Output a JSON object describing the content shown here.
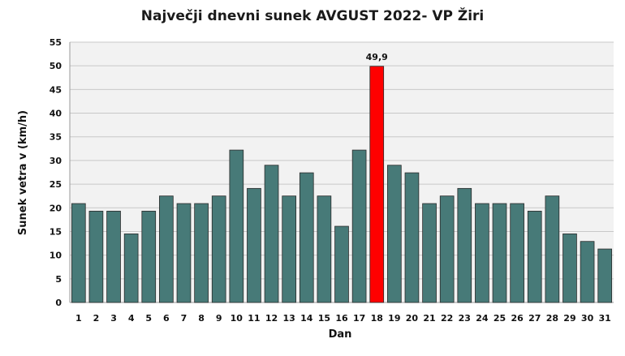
{
  "chart_data": {
    "type": "bar",
    "title": "Največji dnevni sunek AVGUST 2022- VP Žiri",
    "xlabel": "Dan",
    "ylabel": "Sunek vetra v (km/h)",
    "ylim": [
      0,
      55
    ],
    "yticks": [
      0,
      5,
      10,
      15,
      20,
      25,
      30,
      35,
      40,
      45,
      50,
      55
    ],
    "grid": true,
    "categories": [
      "1",
      "2",
      "3",
      "4",
      "5",
      "6",
      "7",
      "8",
      "9",
      "10",
      "11",
      "12",
      "13",
      "14",
      "15",
      "16",
      "17",
      "18",
      "19",
      "20",
      "21",
      "22",
      "23",
      "24",
      "25",
      "26",
      "27",
      "28",
      "29",
      "30",
      "31"
    ],
    "values": [
      20.9,
      19.3,
      19.3,
      14.5,
      19.3,
      22.5,
      20.9,
      20.9,
      22.5,
      32.2,
      24.1,
      29.0,
      22.5,
      27.4,
      22.5,
      16.1,
      32.2,
      49.9,
      29.0,
      27.4,
      20.9,
      22.5,
      24.1,
      20.9,
      20.9,
      20.9,
      19.3,
      22.5,
      14.5,
      12.9,
      11.3
    ],
    "highlight_index": 17,
    "highlight_label": "49,9",
    "colors": {
      "bar": "#477a78",
      "highlight": "#ff0000",
      "grid": "#c8c8c8",
      "plot_bg": "#f2f2f2"
    }
  }
}
